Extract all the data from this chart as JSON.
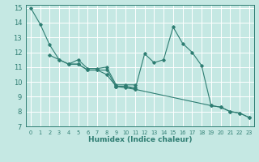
{
  "xlabel": "Humidex (Indice chaleur)",
  "bg_color": "#c5e8e3",
  "grid_color": "#ffffff",
  "line_color": "#2e7d72",
  "xlim": [
    -0.5,
    23.5
  ],
  "ylim": [
    7,
    15.2
  ],
  "xticks": [
    0,
    1,
    2,
    3,
    4,
    5,
    6,
    7,
    8,
    9,
    10,
    11,
    12,
    13,
    14,
    15,
    16,
    17,
    18,
    19,
    20,
    21,
    22,
    23
  ],
  "yticks": [
    7,
    8,
    9,
    10,
    11,
    12,
    13,
    14,
    15
  ],
  "series": [
    [
      0,
      15.0,
      1,
      13.9,
      2,
      12.5,
      3,
      11.5,
      4,
      11.2,
      5,
      11.2,
      6,
      10.8,
      7,
      10.8,
      8,
      10.5,
      9,
      9.7,
      10,
      9.7,
      11,
      9.5,
      12,
      11.9,
      13,
      11.3,
      14,
      11.5,
      15,
      13.7,
      16,
      12.6,
      17,
      12.0,
      18,
      11.1,
      19,
      8.4,
      20,
      8.3,
      21,
      8.0,
      22,
      7.9,
      23,
      7.6
    ],
    [
      2,
      11.8,
      3,
      11.5,
      4,
      11.2,
      5,
      11.5,
      6,
      10.9,
      7,
      10.9,
      8,
      11.0,
      9,
      9.8,
      10,
      9.8,
      11,
      9.8
    ],
    [
      4,
      11.2,
      5,
      11.2,
      6,
      10.8,
      7,
      10.8,
      8,
      10.8,
      9,
      9.7,
      10,
      9.7,
      11,
      9.6
    ],
    [
      9,
      9.7,
      10,
      9.6,
      11,
      9.5,
      19,
      8.4,
      20,
      8.3,
      21,
      8.0,
      22,
      7.9,
      23,
      7.6
    ]
  ]
}
